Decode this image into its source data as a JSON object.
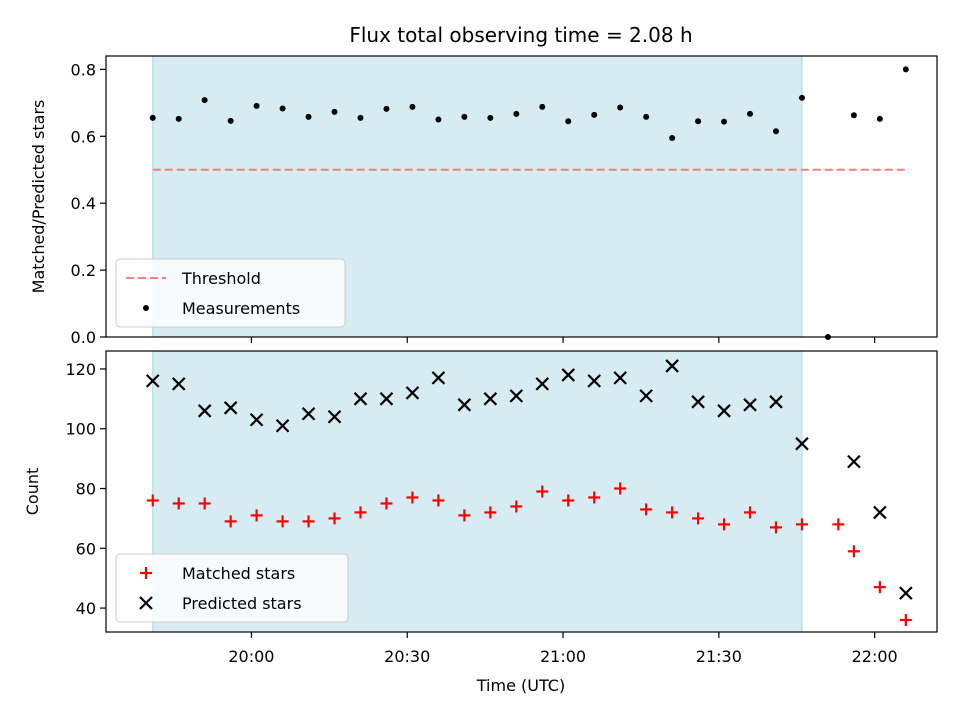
{
  "chart_data": {
    "title": "Flux total observing time = 2.08 h",
    "xlabel": "Time (UTC)",
    "x_ticks": [
      "20:00",
      "20:30",
      "21:00",
      "21:30",
      "22:00"
    ],
    "x_tick_minutes": [
      1200,
      1230,
      1260,
      1290,
      1320
    ],
    "xlim_minutes": [
      1172,
      1332
    ],
    "shaded_span_minutes": [
      1181,
      1306
    ],
    "colors": {
      "shade": "#add8e6",
      "threshold": "#f08080",
      "measurements": "#000000",
      "matched": "#ff0000",
      "predicted": "#000000"
    },
    "panels": [
      {
        "id": "ratio",
        "type": "scatter",
        "ylabel": "Matched/Predicted stars",
        "ylim": [
          0,
          0.84
        ],
        "y_ticks": [
          "0.0",
          "0.2",
          "0.4",
          "0.6",
          "0.8"
        ],
        "y_tick_values": [
          0,
          0.2,
          0.4,
          0.6,
          0.8
        ],
        "legend_position": "lower-left",
        "threshold": {
          "name": "Threshold",
          "value": 0.5,
          "x_range": [
            1181,
            1326
          ]
        },
        "series": [
          {
            "name": "Measurements",
            "marker": "dot",
            "x": [
              1181,
              1186,
              1191,
              1196,
              1201,
              1206,
              1211,
              1216,
              1221,
              1226,
              1231,
              1236,
              1241,
              1246,
              1251,
              1256,
              1261,
              1266,
              1271,
              1276,
              1281,
              1286,
              1291,
              1296,
              1301,
              1306,
              1311,
              1316,
              1321,
              1326
            ],
            "y": [
              0.655,
              0.652,
              0.708,
              0.646,
              0.691,
              0.683,
              0.658,
              0.673,
              0.655,
              0.682,
              0.688,
              0.65,
              0.658,
              0.655,
              0.667,
              0.688,
              0.645,
              0.664,
              0.686,
              0.658,
              0.595,
              0.645,
              0.644,
              0.667,
              0.615,
              0.715,
              0.0,
              0.663,
              0.652,
              0.8
            ]
          }
        ]
      },
      {
        "id": "count",
        "type": "scatter",
        "ylabel": "Count",
        "ylim": [
          32,
          126
        ],
        "y_ticks": [
          "40",
          "60",
          "80",
          "100",
          "120"
        ],
        "y_tick_values": [
          40,
          60,
          80,
          100,
          120
        ],
        "legend_position": "lower-left",
        "series": [
          {
            "name": "Matched stars",
            "marker": "plus",
            "x": [
              1181,
              1186,
              1191,
              1196,
              1201,
              1206,
              1211,
              1216,
              1221,
              1226,
              1231,
              1236,
              1241,
              1246,
              1251,
              1256,
              1261,
              1266,
              1271,
              1276,
              1281,
              1286,
              1291,
              1296,
              1301,
              1306,
              1313,
              1316,
              1321,
              1326
            ],
            "y": [
              76,
              75,
              75,
              69,
              71,
              69,
              69,
              70,
              72,
              75,
              77,
              76,
              71,
              72,
              74,
              79,
              76,
              77,
              80,
              73,
              72,
              70,
              68,
              72,
              67,
              68,
              68,
              59,
              47,
              36
            ]
          },
          {
            "name": "Predicted stars",
            "marker": "x",
            "x": [
              1181,
              1186,
              1191,
              1196,
              1201,
              1206,
              1211,
              1216,
              1221,
              1226,
              1231,
              1236,
              1241,
              1246,
              1251,
              1256,
              1261,
              1266,
              1271,
              1276,
              1281,
              1286,
              1291,
              1296,
              1301,
              1306,
              1316,
              1321,
              1326
            ],
            "y": [
              116,
              115,
              106,
              107,
              103,
              101,
              105,
              104,
              110,
              110,
              112,
              117,
              108,
              110,
              111,
              115,
              118,
              116,
              117,
              111,
              121,
              109,
              106,
              108,
              109,
              95,
              89,
              72,
              45
            ]
          }
        ]
      }
    ]
  }
}
